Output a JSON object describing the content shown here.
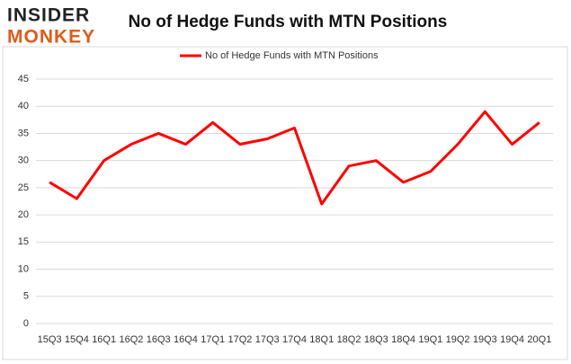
{
  "logo": {
    "line1": "INSIDER",
    "line2": "MONKEY"
  },
  "chart_data": {
    "type": "line",
    "title": "No of Hedge Funds with MTN Positions",
    "categories": [
      "15Q3",
      "15Q4",
      "16Q1",
      "16Q2",
      "16Q3",
      "16Q4",
      "17Q1",
      "17Q2",
      "17Q3",
      "17Q4",
      "18Q1",
      "18Q2",
      "18Q3",
      "18Q4",
      "19Q1",
      "19Q2",
      "19Q3",
      "19Q4",
      "20Q1"
    ],
    "series": [
      {
        "name": "No of Hedge Funds with MTN Positions",
        "color": "#ff0000",
        "values": [
          26,
          23,
          30,
          33,
          35,
          33,
          37,
          33,
          34,
          36,
          22,
          29,
          30,
          26,
          28,
          33,
          39,
          33,
          37
        ]
      }
    ],
    "ylim": [
      0,
      45
    ],
    "yticks": [
      0,
      5,
      10,
      15,
      20,
      25,
      30,
      35,
      40,
      45
    ],
    "grid": true,
    "legend": "top"
  }
}
